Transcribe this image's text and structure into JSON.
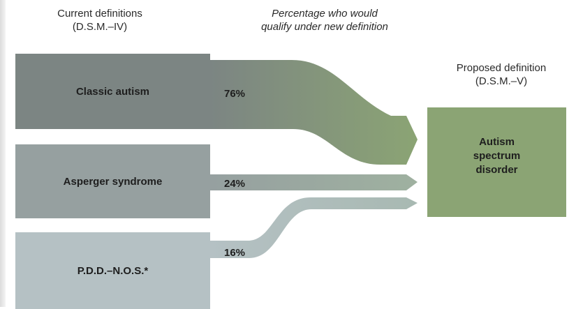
{
  "headers": {
    "current_line1": "Current definitions",
    "current_line2": "(D.S.M.–IV)",
    "percentage_line1": "Percentage who would",
    "percentage_line2": "qualify under new definition",
    "proposed_line1": "Proposed definition",
    "proposed_line2": "(D.S.M.–V)"
  },
  "current_definitions": [
    {
      "label": "Classic autism",
      "percent_label": "76%",
      "percent": 76,
      "color": "#7c8583"
    },
    {
      "label": "Asperger syndrome",
      "percent_label": "24%",
      "percent": 24,
      "color": "#96a0a0"
    },
    {
      "label": "P.D.D.–N.O.S.*",
      "percent_label": "16%",
      "percent": 16,
      "color": "#b5c1c4"
    }
  ],
  "proposed_definition": {
    "line1": "Autism",
    "line2": "spectrum",
    "line3": "disorder",
    "color": "#8ba474"
  }
}
